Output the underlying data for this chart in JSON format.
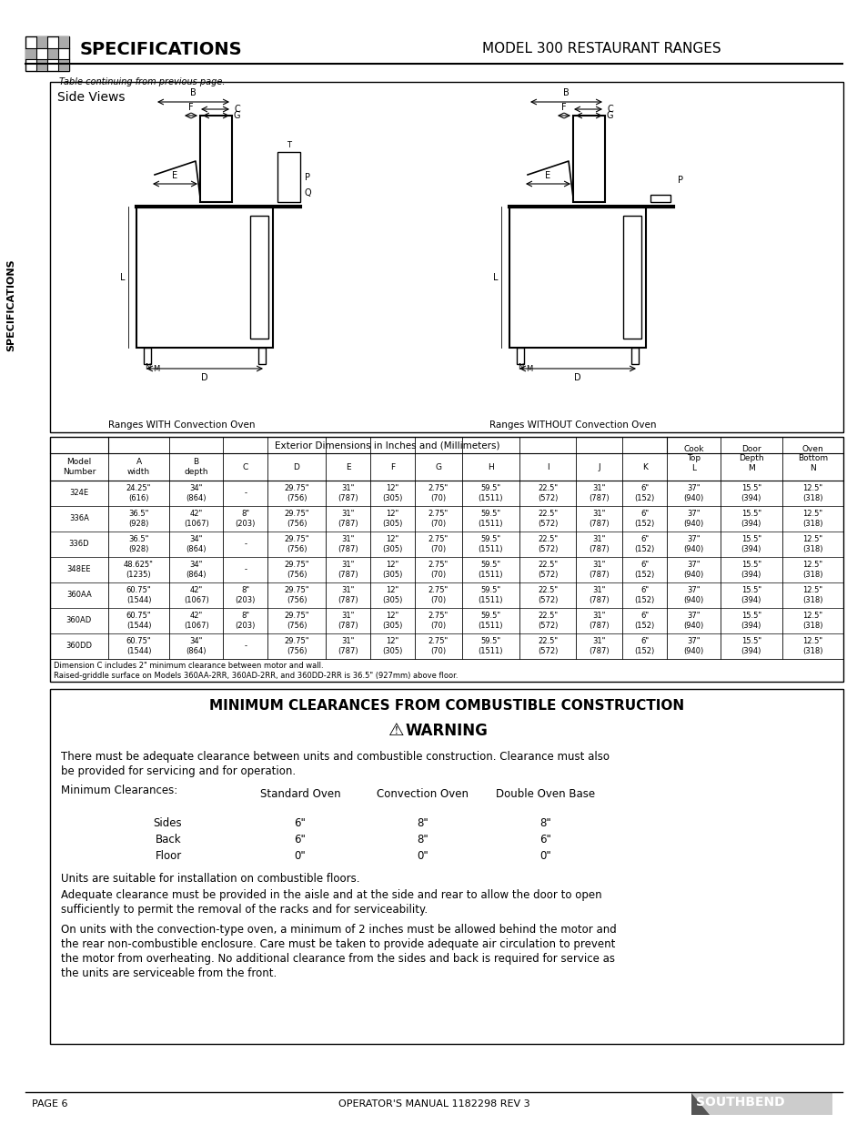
{
  "page_bg": "#ffffff",
  "header_left": "SPECIFICATIONS",
  "header_right": "MODEL 300 RESTAURANT RANGES",
  "page_note": "Table continuing from previous page.",
  "side_views_title": "Side Views",
  "left_diagram_label": "Ranges WITH Convection Oven",
  "right_diagram_label": "Ranges WITHOUT Convection Oven",
  "table_header_main": "Exterior Dimensions in Inches and (Millimeters)",
  "table_columns": [
    "Model\nNumber",
    "A\nwidth",
    "B\ndepth",
    "C",
    "D",
    "E",
    "F",
    "G",
    "H",
    "I",
    "J",
    "K",
    "Cook\nTop\nL",
    "Door\nDepth\nM",
    "Oven\nBottom\nN"
  ],
  "table_rows": [
    [
      "324E",
      "24.25\"\n(616)",
      "34\"\n(864)",
      "-",
      "29.75\"\n(756)",
      "31\"\n(787)",
      "12\"\n(305)",
      "2.75\"\n(70)",
      "59.5\"\n(1511)",
      "22.5\"\n(572)",
      "31\"\n(787)",
      "6\"\n(152)",
      "37\"\n(940)",
      "15.5\"\n(394)",
      "12.5\"\n(318)"
    ],
    [
      "336A",
      "36.5\"\n(928)",
      "42\"\n(1067)",
      "8\"\n(203)",
      "29.75\"\n(756)",
      "31\"\n(787)",
      "12\"\n(305)",
      "2.75\"\n(70)",
      "59.5\"\n(1511)",
      "22.5\"\n(572)",
      "31\"\n(787)",
      "6\"\n(152)",
      "37\"\n(940)",
      "15.5\"\n(394)",
      "12.5\"\n(318)"
    ],
    [
      "336D",
      "36.5\"\n(928)",
      "34\"\n(864)",
      "-",
      "29.75\"\n(756)",
      "31\"\n(787)",
      "12\"\n(305)",
      "2.75\"\n(70)",
      "59.5\"\n(1511)",
      "22.5\"\n(572)",
      "31\"\n(787)",
      "6\"\n(152)",
      "37\"\n(940)",
      "15.5\"\n(394)",
      "12.5\"\n(318)"
    ],
    [
      "348EE",
      "48.625\"\n(1235)",
      "34\"\n(864)",
      "-",
      "29.75\"\n(756)",
      "31\"\n(787)",
      "12\"\n(305)",
      "2.75\"\n(70)",
      "59.5\"\n(1511)",
      "22.5\"\n(572)",
      "31\"\n(787)",
      "6\"\n(152)",
      "37\"\n(940)",
      "15.5\"\n(394)",
      "12.5\"\n(318)"
    ],
    [
      "360AA",
      "60.75\"\n(1544)",
      "42\"\n(1067)",
      "8\"\n(203)",
      "29.75\"\n(756)",
      "31\"\n(787)",
      "12\"\n(305)",
      "2.75\"\n(70)",
      "59.5\"\n(1511)",
      "22.5\"\n(572)",
      "31\"\n(787)",
      "6\"\n(152)",
      "37\"\n(940)",
      "15.5\"\n(394)",
      "12.5\"\n(318)"
    ],
    [
      "360AD",
      "60.75\"\n(1544)",
      "42\"\n(1067)",
      "8\"\n(203)",
      "29.75\"\n(756)",
      "31\"\n(787)",
      "12\"\n(305)",
      "2.75\"\n(70)",
      "59.5\"\n(1511)",
      "22.5\"\n(572)",
      "31\"\n(787)",
      "6\"\n(152)",
      "37\"\n(940)",
      "15.5\"\n(394)",
      "12.5\"\n(318)"
    ],
    [
      "360DD",
      "60.75\"\n(1544)",
      "34\"\n(864)",
      "-",
      "29.75\"\n(756)",
      "31\"\n(787)",
      "12\"\n(305)",
      "2.75\"\n(70)",
      "59.5\"\n(1511)",
      "22.5\"\n(572)",
      "31\"\n(787)",
      "6\"\n(152)",
      "37\"\n(940)",
      "15.5\"\n(394)",
      "12.5\"\n(318)"
    ]
  ],
  "table_footnotes": [
    "Dimension C includes 2\" minimum clearance between motor and wall.",
    "Raised-griddle surface on Models 360AA-2RR, 360AD-2RR, and 360DD-2RR is 36.5\" (927mm) above floor."
  ],
  "clearance_title": "MINIMUM CLEARANCES FROM COMBUSTIBLE CONSTRUCTION",
  "warning_label": "WARNING",
  "clearance_intro": "There must be adequate clearance between units and combustible construction. Clearance must also\nbe provided for servicing and for operation.",
  "clearance_min_label": "Minimum Clearances:",
  "clearance_col_headers": [
    "Standard Oven",
    "Convection Oven",
    "Double Oven Base"
  ],
  "clearance_rows": [
    [
      "Sides",
      "6\"",
      "8\"",
      "8\""
    ],
    [
      "Back",
      "6\"",
      "8\"",
      "6\""
    ],
    [
      "Floor",
      "0\"",
      "0\"",
      "0\""
    ]
  ],
  "clearance_para1": "Units are suitable for installation on combustible floors.",
  "clearance_para2": "Adequate clearance must be provided in the aisle and at the side and rear to allow the door to open\nsufficiently to permit the removal of the racks and for serviceability.",
  "clearance_para3": "On units with the convection-type oven, a minimum of 2 inches must be allowed behind the motor and\nthe rear non-combustible enclosure. Care must be taken to provide adequate air circulation to prevent\nthe motor from overheating. No additional clearance from the sides and back is required for service as\nthe units are serviceable from the front.",
  "footer_left": "PAGE 6",
  "footer_center": "OPERATOR'S MANUAL 1182298 REV 3",
  "vertical_label": "SPECIFICATIONS"
}
